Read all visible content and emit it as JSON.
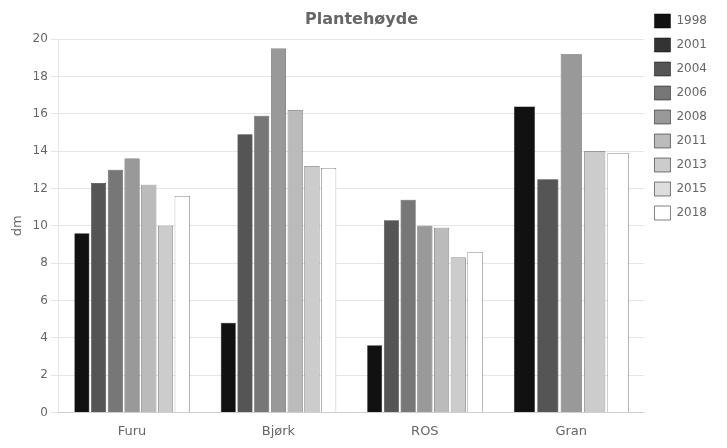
{
  "chart_data": {
    "type": "bar",
    "title": "Plantehøyde",
    "ylabel": "dm",
    "categories": [
      "Furu",
      "Bjørk",
      "ROS",
      "Gran"
    ],
    "series": [
      {
        "name": "1998",
        "color": "#111111",
        "values": [
          9.6,
          4.8,
          3.6,
          16.4
        ]
      },
      {
        "name": "2001",
        "color": "#333333",
        "values": [
          null,
          null,
          null,
          null
        ]
      },
      {
        "name": "2004",
        "color": "#555555",
        "values": [
          12.3,
          14.9,
          10.3,
          12.5
        ]
      },
      {
        "name": "2006",
        "color": "#777777",
        "values": [
          13.0,
          15.9,
          11.4,
          null
        ]
      },
      {
        "name": "2008",
        "color": "#999999",
        "values": [
          13.6,
          19.5,
          10.0,
          19.2
        ]
      },
      {
        "name": "2011",
        "color": "#bbbbbb",
        "values": [
          12.2,
          16.2,
          9.9,
          null
        ]
      },
      {
        "name": "2013",
        "color": "#cccccc",
        "values": [
          10.0,
          13.2,
          8.3,
          14.0
        ]
      },
      {
        "name": "2015",
        "color": "#dddddd",
        "values": [
          null,
          null,
          null,
          null
        ]
      },
      {
        "name": "2018",
        "color": "#ffffff",
        "values": [
          11.6,
          13.1,
          8.6,
          13.9
        ]
      }
    ],
    "ylim": [
      0,
      20
    ],
    "yticks": [
      0,
      2,
      4,
      6,
      8,
      10,
      12,
      14,
      16,
      18,
      20
    ],
    "grid": true,
    "legend": "right"
  }
}
